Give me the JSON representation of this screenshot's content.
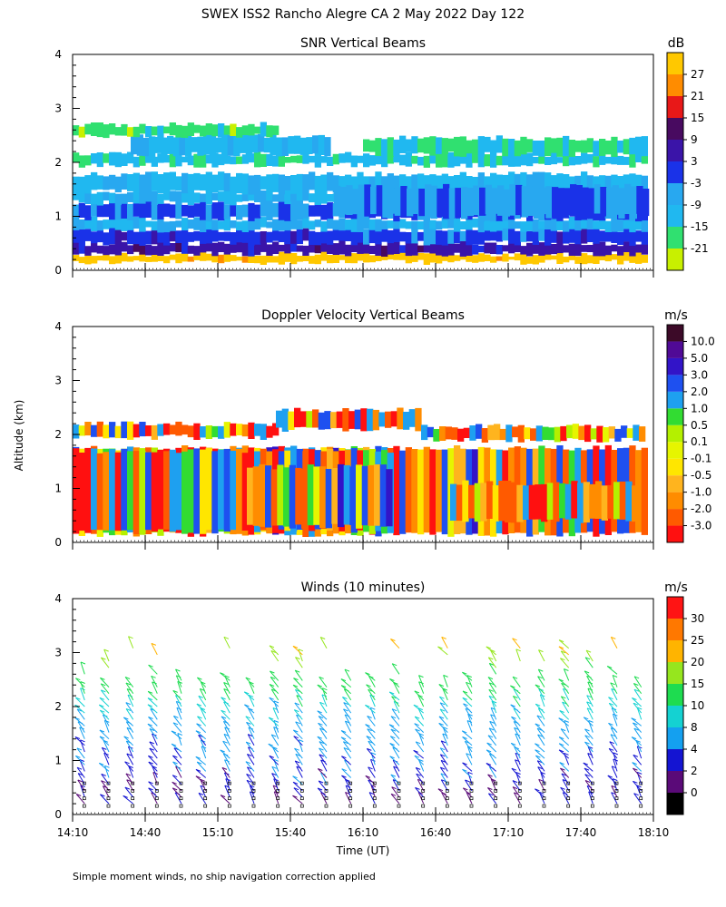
{
  "title": "SWEX ISS2 Rancho Alegre CA   2 May 2022 Day 122",
  "ylabel": "Altitude (km)",
  "xlabel": "Time (UT)",
  "footnote": "Simple moment winds, no ship navigation correction applied",
  "chart_data": [
    {
      "type": "heatmap",
      "title": "SNR Vertical Beams",
      "unit": "dB",
      "ylim": [
        0,
        4
      ],
      "yticks": [
        "0",
        "1",
        "2",
        "3",
        "4"
      ],
      "x_range": [
        "14:10",
        "18:10"
      ],
      "colorbar": {
        "labels": [
          "-21",
          "-15",
          "-9",
          "-3",
          "3",
          "9",
          "15",
          "21",
          "27"
        ],
        "colors": [
          "#c8f000",
          "#30e070",
          "#20b8f0",
          "#28a8f0",
          "#1a32e8",
          "#3a14a8",
          "#480a60",
          "#e81818",
          "#ff8c00",
          "#ffc800"
        ]
      },
      "layers": [
        {
          "z": 30,
          "x": [
            0.0,
            1.0
          ],
          "y": [
            0.15,
            0.3
          ]
        },
        {
          "z": 6,
          "x": [
            0.0,
            1.0
          ],
          "y": [
            0.3,
            0.5
          ]
        },
        {
          "z": 0,
          "x": [
            0.0,
            1.0
          ],
          "y": [
            0.5,
            0.75
          ]
        },
        {
          "z": -9,
          "x": [
            0.0,
            1.0
          ],
          "y": [
            0.75,
            0.95
          ]
        },
        {
          "z": -2,
          "x": [
            0.0,
            1.0
          ],
          "y": [
            0.95,
            1.25
          ]
        },
        {
          "z": -9,
          "x": [
            0.0,
            1.0
          ],
          "y": [
            1.25,
            1.45
          ]
        },
        {
          "z": -10,
          "x": [
            0.0,
            1.0
          ],
          "y": [
            1.45,
            1.78
          ]
        },
        {
          "z": -4,
          "x": [
            0.45,
            1.0
          ],
          "y": [
            1.0,
            1.55
          ]
        },
        {
          "z": -14,
          "x": [
            0.0,
            1.0
          ],
          "y": [
            1.95,
            2.15
          ]
        },
        {
          "z": -10,
          "x": [
            0.1,
            0.45
          ],
          "y": [
            2.15,
            2.5
          ]
        },
        {
          "z": -18,
          "x": [
            0.0,
            0.35
          ],
          "y": [
            2.5,
            2.7
          ]
        },
        {
          "z": -16,
          "x": [
            0.5,
            1.0
          ],
          "y": [
            2.15,
            2.45
          ]
        }
      ]
    },
    {
      "type": "heatmap",
      "title": "Doppler Velocity Vertical Beams",
      "unit": "m/s",
      "ylim": [
        0,
        4
      ],
      "yticks": [
        "0",
        "1",
        "2",
        "3",
        "4"
      ],
      "x_range": [
        "14:10",
        "18:10"
      ],
      "colorbar": {
        "labels": [
          "-3.0",
          "-2.0",
          "-1.0",
          "-0.5",
          "-0.1",
          "0.1",
          "0.5",
          "1.0",
          "2.0",
          "3.0",
          "5.0",
          "10.0"
        ],
        "colors": [
          "#ff1010",
          "#ff5a00",
          "#ff8c00",
          "#ffb41e",
          "#ffe600",
          "#e6f500",
          "#b4f000",
          "#32dc32",
          "#1ea0f0",
          "#1e50f0",
          "#3214c8",
          "#500a96",
          "#3c0a28"
        ]
      },
      "layers": [
        {
          "z": -0.3,
          "x": [
            0.0,
            1.0
          ],
          "y": [
            0.15,
            1.75
          ]
        },
        {
          "z": -0.7,
          "x": [
            0.0,
            0.55
          ],
          "y": [
            0.2,
            1.7
          ]
        },
        {
          "z": 0.0,
          "x": [
            0.3,
            0.55
          ],
          "y": [
            0.3,
            1.4
          ]
        },
        {
          "z": -1.5,
          "x": [
            0.65,
            0.98
          ],
          "y": [
            0.4,
            1.1
          ]
        },
        {
          "z": -0.8,
          "x": [
            0.0,
            0.35
          ],
          "y": [
            1.95,
            2.2
          ]
        },
        {
          "z": -1.0,
          "x": [
            0.35,
            0.6
          ],
          "y": [
            2.1,
            2.45
          ]
        },
        {
          "z": -0.7,
          "x": [
            0.6,
            1.0
          ],
          "y": [
            1.9,
            2.15
          ]
        }
      ]
    },
    {
      "type": "scatter",
      "title": "Winds (10 minutes)",
      "unit": "m/s",
      "ylim": [
        0,
        4
      ],
      "yticks": [
        "0",
        "1",
        "2",
        "3",
        "4"
      ],
      "xticks": [
        "14:10",
        "14:40",
        "15:10",
        "15:40",
        "16:10",
        "16:40",
        "17:10",
        "17:40",
        "18:10"
      ],
      "colorbar": {
        "labels": [
          "0",
          "2",
          "4",
          "8",
          "10",
          "15",
          "20",
          "25",
          "30"
        ],
        "colors": [
          "#000000",
          "#5a0a78",
          "#1414d2",
          "#14a0f0",
          "#14d2d2",
          "#1edc50",
          "#96e61e",
          "#ffb400",
          "#ff7800",
          "#ff1414"
        ]
      },
      "wind_speed_profile": {
        "altitude_km": [
          0.3,
          0.6,
          0.9,
          1.2,
          1.5,
          1.8,
          2.1,
          2.4,
          2.7,
          3.0
        ],
        "speed_ms": [
          2,
          3,
          4,
          5,
          6,
          8,
          10,
          13,
          16,
          20
        ]
      }
    }
  ]
}
